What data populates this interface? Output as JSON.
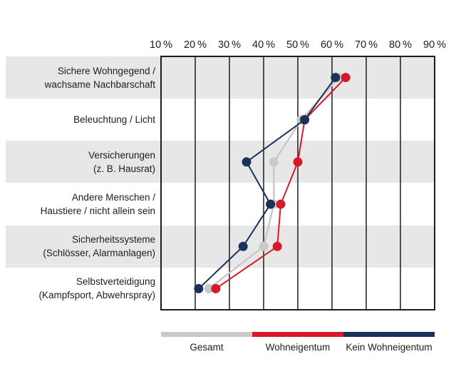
{
  "chart_data": {
    "type": "line",
    "subtype": "dot-line-by-category",
    "title": "",
    "x_axis": {
      "unit": "%",
      "range": [
        10,
        90
      ],
      "tick_step": 10,
      "ticks": [
        10,
        20,
        30,
        40,
        50,
        60,
        70,
        80,
        90
      ],
      "tick_labels": [
        "10 %",
        "20 %",
        "30 %",
        "40 %",
        "50 %",
        "60 %",
        "70 %",
        "80 %",
        "90 %"
      ]
    },
    "categories": [
      [
        "Sichere Wohngegend /",
        "wachsame Nachbarschaft"
      ],
      [
        "Beleuchtung / Licht"
      ],
      [
        "Versicherungen",
        "(z. B. Hausrat)"
      ],
      [
        "Andere Menschen /",
        "Haustiere / nicht allein sein"
      ],
      [
        "Sicherheitssysteme",
        "(Schlösser, Alarmanlagen)"
      ],
      [
        "Selbstverteidigung",
        "(Kampfsport, Abwehrspray)"
      ]
    ],
    "series": [
      {
        "name": "Gesamt",
        "color": "#c9c9c9",
        "values": [
          62,
          51,
          43,
          43,
          40,
          24
        ]
      },
      {
        "name": "Wohneigentum",
        "color": "#d8192b",
        "values": [
          64,
          52,
          50,
          45,
          44,
          26
        ]
      },
      {
        "name": "Kein Wohneigentum",
        "color": "#1b3159",
        "values": [
          61,
          52,
          35,
          42,
          34,
          21
        ]
      }
    ],
    "legend": {
      "position": "bottom",
      "entries": [
        {
          "label": "Gesamt",
          "color": "#c9c9c9"
        },
        {
          "label": "Wohneigentum",
          "color": "#d8192b"
        },
        {
          "label": "Kein Wohneigentum",
          "color": "#1b3159"
        }
      ]
    },
    "grid": {
      "vertical_lines": true,
      "row_banding": true,
      "band_color": "#e7e7e7",
      "line_color": "#1d1d1b"
    }
  }
}
